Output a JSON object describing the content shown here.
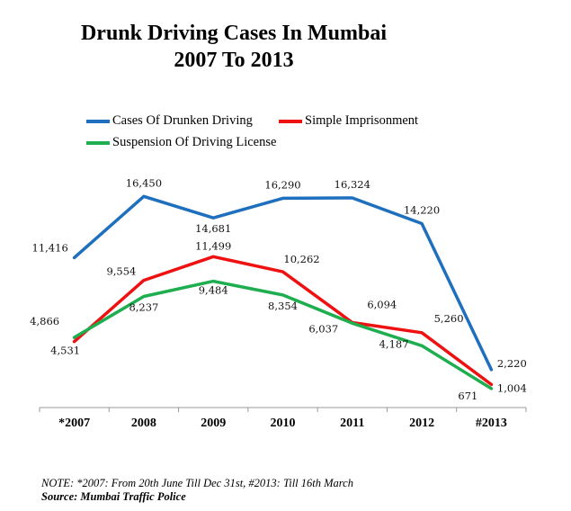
{
  "chart_data": {
    "type": "line",
    "title": "Drunk Driving Cases In Mumbai",
    "subtitle": "2007 To 2013",
    "categories": [
      "*2007",
      "2008",
      "2009",
      "2010",
      "2011",
      "2012",
      "#2013"
    ],
    "series": [
      {
        "name": "Cases Of Drunken Driving",
        "color": "#1f6fbf",
        "values": [
          11416,
          16450,
          14681,
          16290,
          16324,
          14220,
          2220
        ],
        "labels": [
          "11,416",
          "16,450",
          "14,681",
          "16,290",
          "16,324",
          "14,220",
          "2,220"
        ]
      },
      {
        "name": "Simple Imprisonment",
        "color": "#ee1111",
        "values": [
          4531,
          9554,
          11499,
          10262,
          6094,
          5260,
          1004
        ],
        "labels": [
          "4,531",
          "9,554",
          "11,499",
          "10,262",
          "6,094",
          "5,260",
          "1,004"
        ]
      },
      {
        "name": "Suspension Of Driving License",
        "color": "#1fae4f",
        "values": [
          4866,
          8237,
          9484,
          8354,
          6037,
          4187,
          671
        ],
        "labels": [
          "4,866",
          "8,237",
          "9,484",
          "8,354",
          "6,037",
          "4,187",
          "671"
        ]
      }
    ],
    "ylim": [
      0,
      18000
    ],
    "grid": false,
    "legend_position": "top"
  },
  "footer": {
    "note": "NOTE: *2007: From 20th June Till Dec 31st, #2013: Till 16th March",
    "source": "Source: Mumbai Traffic Police"
  }
}
